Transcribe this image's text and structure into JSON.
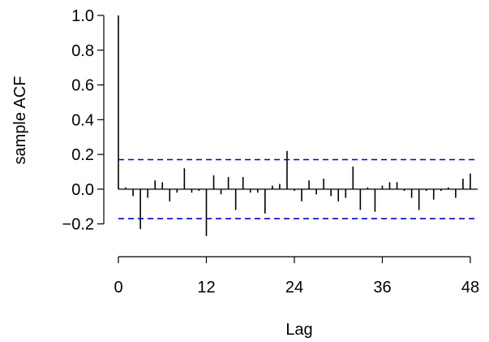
{
  "chart_data": {
    "type": "bar",
    "xlabel": "Lag",
    "ylabel": "sample ACF",
    "xlim": [
      0,
      49
    ],
    "ylim": [
      -0.3,
      1.0
    ],
    "xticks": [
      0,
      12,
      24,
      36,
      48
    ],
    "yticks": [
      -0.2,
      0.0,
      0.2,
      0.4,
      0.6,
      0.8,
      1.0
    ],
    "ytick_labels": [
      "−0.2",
      "0.0",
      "0.2",
      "0.4",
      "0.6",
      "0.8",
      "1.0"
    ],
    "confidence_bounds": [
      0.17,
      -0.17
    ],
    "series": [
      {
        "lags": [
          0,
          1,
          2,
          3,
          4,
          5,
          6,
          7,
          8,
          9,
          10,
          11,
          12,
          13,
          14,
          15,
          16,
          17,
          18,
          19,
          20,
          21,
          22,
          23,
          24,
          25,
          26,
          27,
          28,
          29,
          30,
          31,
          32,
          33,
          34,
          35,
          36,
          37,
          38,
          39,
          40,
          41,
          42,
          43,
          44,
          45,
          46,
          47,
          48
        ],
        "acf": [
          1.0,
          0.01,
          -0.04,
          -0.23,
          -0.05,
          0.05,
          0.04,
          -0.07,
          -0.02,
          0.12,
          -0.02,
          -0.01,
          -0.27,
          0.08,
          -0.03,
          0.07,
          -0.12,
          0.07,
          -0.02,
          -0.02,
          -0.14,
          0.02,
          0.03,
          0.22,
          -0.01,
          -0.07,
          0.05,
          -0.03,
          0.06,
          -0.04,
          -0.07,
          -0.05,
          0.13,
          -0.12,
          0.01,
          -0.13,
          0.02,
          0.04,
          0.04,
          -0.01,
          -0.05,
          -0.12,
          -0.01,
          -0.06,
          -0.01,
          0.01,
          -0.05,
          0.06,
          0.09
        ]
      }
    ],
    "colors": {
      "bars": "#000000",
      "bounds": "#0000cc",
      "axes": "#000000"
    }
  }
}
